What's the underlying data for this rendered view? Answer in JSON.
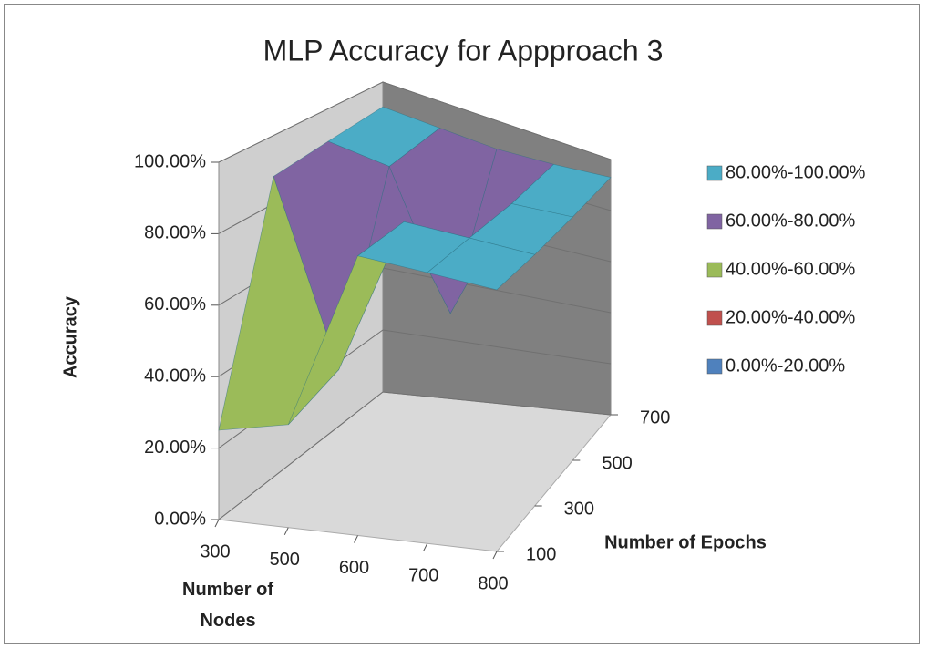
{
  "chart_data": {
    "type": "surface3d",
    "title": "MLP Accuracy for Appproach 3",
    "x_title": "Number of Nodes",
    "y_title": "Number of Epochs",
    "z_title": "Accuracy",
    "x": [
      "300",
      "500",
      "600",
      "700",
      "800"
    ],
    "y": [
      "100",
      "300",
      "500",
      "700"
    ],
    "values": [
      [
        25,
        30,
        85,
        86,
        87
      ],
      [
        88,
        35,
        86,
        87,
        88
      ],
      [
        90,
        88,
        45,
        88,
        90
      ],
      [
        92,
        91,
        90,
        91,
        93
      ]
    ],
    "zlim": [
      0,
      100
    ],
    "zticks": [
      {
        "value": 0,
        "label": "0.00%"
      },
      {
        "value": 20,
        "label": "20.00%"
      },
      {
        "value": 40,
        "label": "40.00%"
      },
      {
        "value": 60,
        "label": "60.00%"
      },
      {
        "value": 80,
        "label": "80.00%"
      },
      {
        "value": 100,
        "label": "100.00%"
      }
    ],
    "bands": [
      {
        "name": "80.00%-100.00%",
        "color": "#4bacc6",
        "range": [
          80,
          100
        ]
      },
      {
        "name": "60.00%-80.00%",
        "color": "#8064a2",
        "range": [
          60,
          80
        ]
      },
      {
        "name": "40.00%-60.00%",
        "color": "#9bbb59",
        "range": [
          40,
          60
        ]
      },
      {
        "name": "20.00%-40.00%",
        "color": "#c0504d",
        "range": [
          20,
          40
        ]
      },
      {
        "name": "0.00%-20.00%",
        "color": "#4f81bd",
        "range": [
          0,
          20
        ]
      }
    ],
    "grid": true
  }
}
